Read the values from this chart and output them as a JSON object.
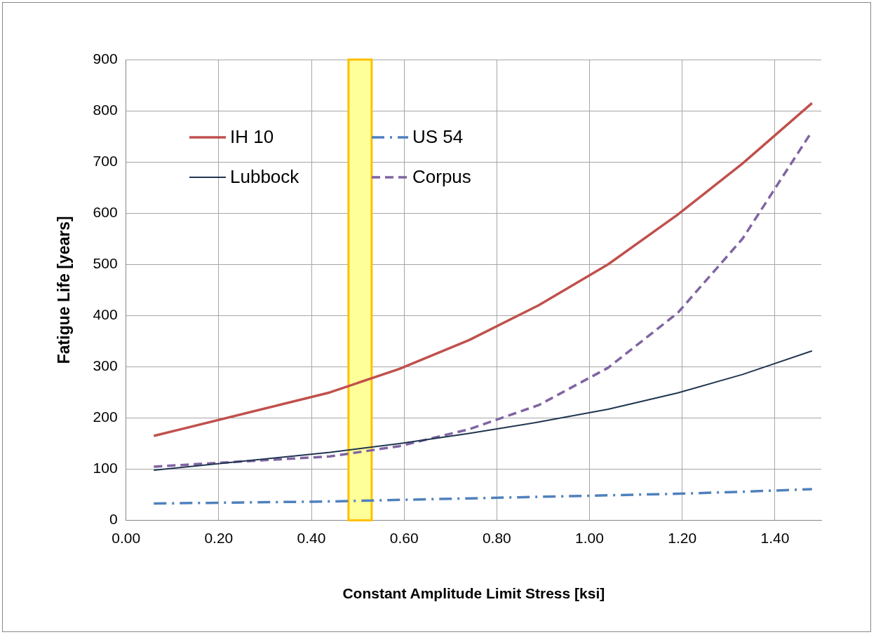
{
  "chart_data": {
    "type": "line",
    "xlabel": "Constant Amplitude Limit Stress [ksi]",
    "ylabel": "Fatigue Life [years]",
    "x": [
      0.06,
      0.44,
      0.59,
      0.74,
      0.89,
      1.04,
      1.19,
      1.33,
      1.48
    ],
    "series": [
      {
        "name": "IH 10",
        "color": "#c0504d",
        "line_style": "solid",
        "values": [
          165,
          250,
          296,
          352,
          420,
          500,
          597,
          697,
          815
        ]
      },
      {
        "name": "US 54",
        "color": "#4f81bd",
        "line_style": "dashdot",
        "values": [
          33,
          37,
          40,
          43,
          46,
          49,
          52,
          56,
          61
        ]
      },
      {
        "name": "Lubbock",
        "color": "#1f3550",
        "line_style": "solid",
        "values": [
          98,
          133,
          150,
          170,
          192,
          217,
          249,
          285,
          331
        ]
      },
      {
        "name": "Corpus",
        "color": "#8064a2",
        "line_style": "dashed",
        "values": [
          105,
          125,
          145,
          178,
          225,
          298,
          405,
          550,
          760
        ]
      }
    ],
    "xlim": [
      0,
      1.5
    ],
    "xticks": [
      {
        "value": 0,
        "label": "0.00"
      },
      {
        "value": 0.2,
        "label": "0.20"
      },
      {
        "value": 0.4,
        "label": "0.40"
      },
      {
        "value": 0.6,
        "label": "0.60"
      },
      {
        "value": 0.8,
        "label": "0.80"
      },
      {
        "value": 1,
        "label": "1.00"
      },
      {
        "value": 1.2,
        "label": "1.20"
      },
      {
        "value": 1.4,
        "label": "1.40"
      }
    ],
    "ylim": [
      0,
      900
    ],
    "yticks": [
      0,
      100,
      200,
      300,
      400,
      500,
      600,
      700,
      800,
      900
    ],
    "bands": [
      {
        "axis": "x",
        "from": 0.48,
        "to": 0.53,
        "color": "#ffff99"
      }
    ],
    "grid": true,
    "legend": "top left",
    "marker": "none"
  }
}
